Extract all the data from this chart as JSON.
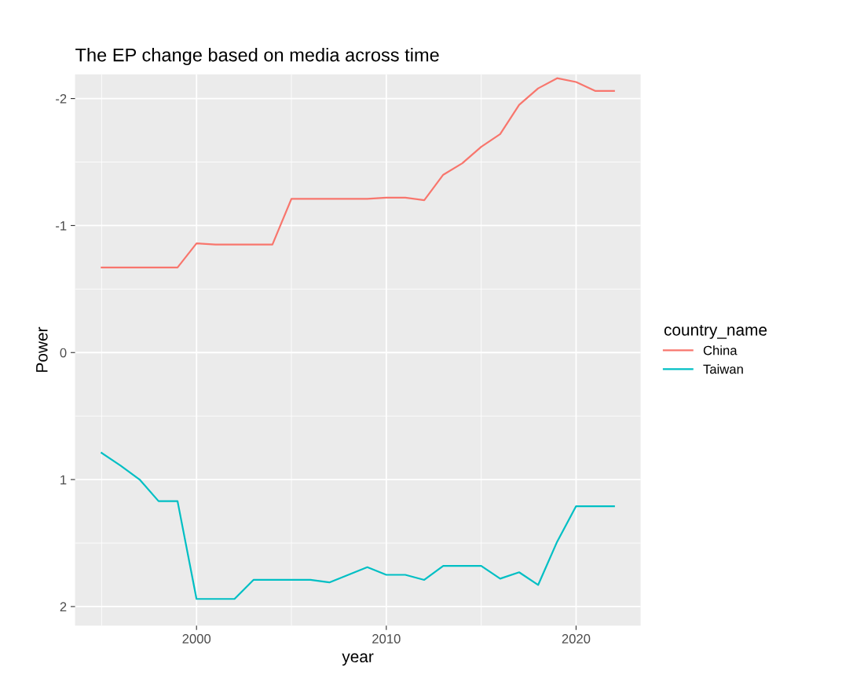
{
  "chart_data": {
    "type": "line",
    "title": "The EP change based on media across time",
    "xlabel": "year",
    "ylabel": "Power",
    "legend_title": "country_name",
    "legend": "right",
    "grid": true,
    "x": [
      1995,
      1996,
      1997,
      1998,
      1999,
      2000,
      2001,
      2002,
      2003,
      2004,
      2005,
      2006,
      2007,
      2008,
      2009,
      2010,
      2011,
      2012,
      2013,
      2014,
      2015,
      2016,
      2017,
      2018,
      2019,
      2020,
      2021,
      2022
    ],
    "xlim": [
      1993.6,
      2023.4
    ],
    "xticks": [
      2000,
      2010,
      2020
    ],
    "ylim": [
      2.15,
      -2.19
    ],
    "yticks": [
      -2,
      -1,
      0,
      1,
      2
    ],
    "series": [
      {
        "name": "China",
        "color": "#f8766d",
        "values": [
          -0.67,
          -0.67,
          -0.67,
          -0.67,
          -0.67,
          -0.86,
          -0.85,
          -0.85,
          -0.85,
          -0.85,
          -1.21,
          -1.21,
          -1.21,
          -1.21,
          -1.21,
          -1.22,
          -1.22,
          -1.2,
          -1.4,
          -1.49,
          -1.62,
          -1.72,
          -1.95,
          -2.08,
          -2.16,
          -2.13,
          -2.06,
          -2.06
        ]
      },
      {
        "name": "Taiwan",
        "color": "#00bfc4",
        "values": [
          0.79,
          0.89,
          1.0,
          1.17,
          1.17,
          1.94,
          1.94,
          1.94,
          1.79,
          1.79,
          1.79,
          1.79,
          1.81,
          1.75,
          1.69,
          1.75,
          1.75,
          1.79,
          1.68,
          1.68,
          1.68,
          1.78,
          1.73,
          1.83,
          1.49,
          1.21,
          1.21,
          1.21
        ]
      }
    ]
  }
}
